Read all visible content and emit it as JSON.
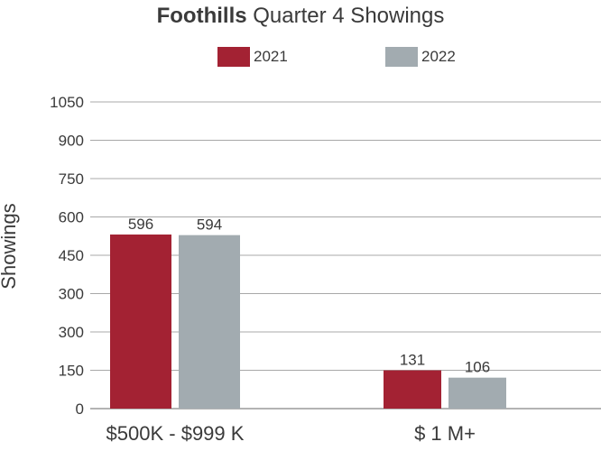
{
  "chart_data": {
    "type": "bar",
    "title_bold": "Foothills",
    "title_rest": " Quarter 4 Showings",
    "ylabel": "Showings",
    "categories": [
      "$500K - $999 K",
      "$ 1 M+"
    ],
    "series": [
      {
        "name": "2021",
        "color": "#a32233",
        "values": [
          596,
          131
        ]
      },
      {
        "name": "2022",
        "color": "#a2abb0",
        "values": [
          594,
          106
        ]
      }
    ],
    "y_ticks": [
      "0",
      "150",
      "300",
      "300",
      "450",
      "600",
      "750",
      "900",
      "1050"
    ],
    "ylim": [
      0,
      1050
    ],
    "grid": true,
    "legend_position": "top-center"
  }
}
